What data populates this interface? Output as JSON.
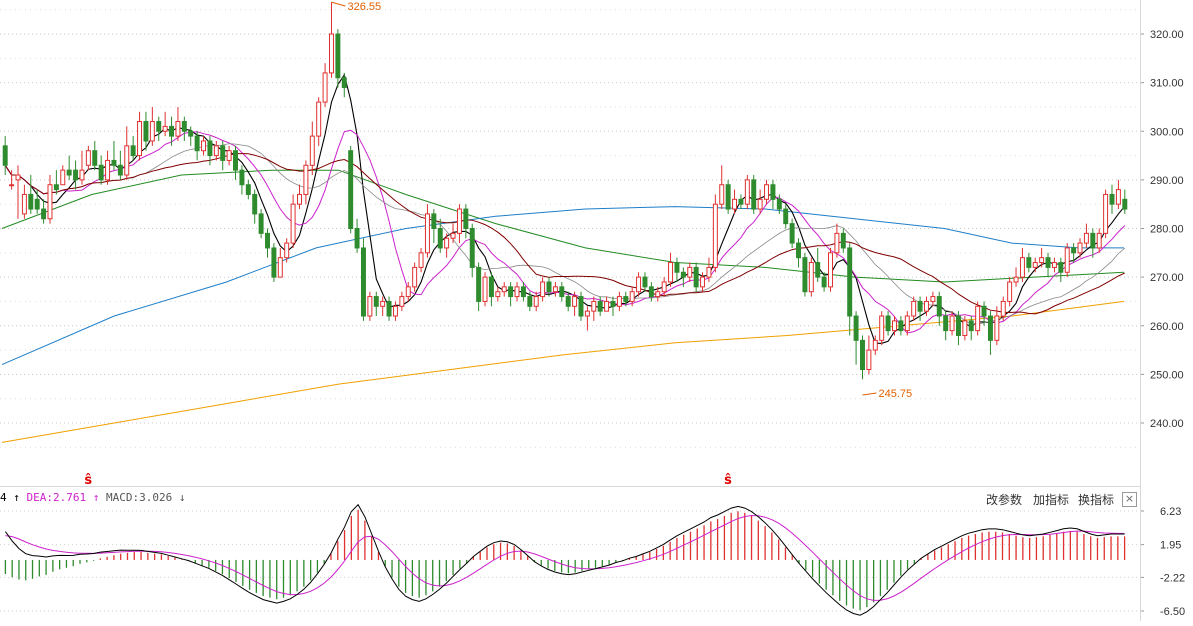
{
  "colors": {
    "up": "#e03030",
    "down": "#2e8b2e",
    "ma5": "#000000",
    "ma10": "#cc22cc",
    "ma20": "#888888",
    "ma30": "#800000",
    "ma60": "#228b22",
    "ma120": "#1e7ec8",
    "ma250": "#f0a000",
    "dif": "#000000",
    "dea": "#cc22cc",
    "annotation": "#e06000",
    "signal": "#e00000"
  },
  "legend": {
    "dif_tail": "4",
    "dif_arrow": "↑",
    "dea_label": "DEA:2.761",
    "dea_arrow": "↑",
    "macd_label": "MACD:3.026",
    "macd_arrow": "↓"
  },
  "toolbar": {
    "change_params": "改参数",
    "add_indicator": "加指标",
    "switch_indicator": "换指标",
    "close": "×"
  },
  "annotations": {
    "high_label": "326.55",
    "low_label": "245.75"
  },
  "signal_glyph": "ŝ",
  "chart_data": [
    {
      "type": "candlestick",
      "y_ticks": [
        "320.00",
        "310.00",
        "300.00",
        "290.00",
        "280.00",
        "270.00",
        "260.00",
        "250.00",
        "240.00"
      ],
      "ylim": [
        231,
        328
      ],
      "high": 326.55,
      "low": 245.75,
      "signal_markers": [
        13,
        113
      ],
      "candles": [
        [
          297,
          293,
          299,
          291
        ],
        [
          289,
          289,
          292,
          288
        ],
        [
          290,
          291,
          293,
          282
        ],
        [
          283,
          287,
          289,
          282
        ],
        [
          287,
          284,
          291,
          283
        ],
        [
          286,
          284,
          288,
          283
        ],
        [
          284,
          282,
          286,
          281
        ],
        [
          282,
          289,
          291,
          281
        ],
        [
          289,
          288,
          292,
          287
        ],
        [
          289,
          292,
          293,
          289
        ],
        [
          292,
          291,
          295,
          290
        ],
        [
          292,
          290,
          294,
          288
        ],
        [
          290,
          292,
          296,
          289
        ],
        [
          293,
          296,
          297,
          292
        ],
        [
          296,
          293,
          298,
          292
        ],
        [
          293,
          290,
          295,
          289
        ],
        [
          290,
          294,
          296,
          289
        ],
        [
          294,
          293,
          298,
          292
        ],
        [
          293,
          291,
          296,
          290
        ],
        [
          291,
          297,
          301,
          290
        ],
        [
          297,
          295,
          299,
          294
        ],
        [
          295,
          302,
          304,
          294
        ],
        [
          302,
          298,
          304,
          296
        ],
        [
          298,
          302,
          305,
          297
        ],
        [
          302,
          300,
          303,
          298
        ],
        [
          300,
          301,
          304,
          299
        ],
        [
          301,
          299,
          303,
          297
        ],
        [
          299,
          302,
          305,
          298
        ],
        [
          302,
          300,
          303,
          298
        ],
        [
          300,
          299,
          301,
          297
        ],
        [
          299,
          296,
          300,
          294
        ],
        [
          296,
          298,
          299,
          295
        ],
        [
          298,
          295,
          299,
          293
        ],
        [
          295,
          297,
          298,
          294
        ],
        [
          297,
          294,
          298,
          292
        ],
        [
          294,
          296,
          297,
          293
        ],
        [
          296,
          292,
          297,
          290
        ],
        [
          292,
          289,
          293,
          287
        ],
        [
          289,
          287,
          290,
          286
        ],
        [
          287,
          283,
          288,
          281
        ],
        [
          283,
          279,
          284,
          278
        ],
        [
          279,
          276,
          280,
          274
        ],
        [
          276,
          270,
          277,
          269
        ],
        [
          270,
          274,
          276,
          270
        ],
        [
          274,
          277,
          278,
          273
        ],
        [
          277,
          285,
          287,
          276
        ],
        [
          285,
          287,
          289,
          284
        ],
        [
          287,
          293,
          294,
          285
        ],
        [
          293,
          299,
          302,
          291
        ],
        [
          299,
          306,
          307,
          297
        ],
        [
          306,
          312,
          314,
          305
        ],
        [
          312,
          320,
          326.55,
          311
        ],
        [
          320,
          311,
          321,
          309
        ],
        [
          311,
          309,
          312,
          307
        ],
        [
          296,
          280,
          297,
          279
        ],
        [
          280,
          276,
          282,
          275
        ],
        [
          276,
          262,
          278,
          261
        ],
        [
          262,
          266,
          267,
          261
        ],
        [
          266,
          264,
          267,
          262
        ],
        [
          264,
          265,
          266,
          262
        ],
        [
          265,
          262,
          266,
          261
        ],
        [
          262,
          264,
          265,
          261
        ],
        [
          264,
          266,
          267,
          263
        ],
        [
          266,
          268,
          269,
          265
        ],
        [
          268,
          272,
          273,
          267
        ],
        [
          272,
          275,
          276,
          271
        ],
        [
          275,
          283,
          285,
          274
        ],
        [
          283,
          280,
          284,
          277
        ],
        [
          280,
          276,
          282,
          275
        ],
        [
          276,
          278,
          279,
          274
        ],
        [
          278,
          279,
          281,
          277
        ],
        [
          279,
          284,
          285,
          277
        ],
        [
          284,
          280,
          285,
          278
        ],
        [
          280,
          272,
          281,
          270
        ],
        [
          272,
          265,
          273,
          263
        ],
        [
          265,
          270,
          271,
          264
        ],
        [
          270,
          266,
          271,
          264
        ],
        [
          266,
          267,
          268,
          265
        ],
        [
          267,
          268,
          269,
          266
        ],
        [
          268,
          266,
          269,
          264
        ],
        [
          266,
          268,
          269,
          265
        ],
        [
          268,
          266,
          269,
          265
        ],
        [
          266,
          264,
          267,
          263
        ],
        [
          264,
          266,
          267,
          263
        ],
        [
          266,
          269,
          270,
          265
        ],
        [
          269,
          267,
          270,
          266
        ],
        [
          267,
          268,
          269,
          266
        ],
        [
          268,
          266,
          269,
          265
        ],
        [
          266,
          264,
          267,
          263
        ],
        [
          264,
          266,
          267,
          262
        ],
        [
          266,
          262,
          267,
          261
        ],
        [
          262,
          263,
          264,
          259
        ],
        [
          263,
          265,
          266,
          261
        ],
        [
          265,
          263,
          266,
          262
        ],
        [
          263,
          265,
          266,
          263
        ],
        [
          265,
          264,
          266,
          262
        ],
        [
          264,
          266,
          267,
          263
        ],
        [
          266,
          265,
          267,
          264
        ],
        [
          265,
          267,
          268,
          264
        ],
        [
          267,
          270,
          271,
          266
        ],
        [
          270,
          268,
          271,
          267
        ],
        [
          268,
          266,
          269,
          265
        ],
        [
          266,
          267,
          268,
          265
        ],
        [
          267,
          269,
          270,
          266
        ],
        [
          269,
          273,
          275,
          268
        ],
        [
          273,
          271,
          274,
          269
        ],
        [
          271,
          270,
          272,
          268
        ],
        [
          270,
          272,
          273,
          269
        ],
        [
          272,
          268,
          273,
          267
        ],
        [
          268,
          270,
          271,
          267
        ],
        [
          270,
          272,
          274,
          269
        ],
        [
          272,
          285,
          287,
          271
        ],
        [
          285,
          289,
          293,
          284
        ],
        [
          289,
          284,
          290,
          283
        ],
        [
          284,
          286,
          288,
          283
        ],
        [
          286,
          285,
          287,
          284
        ],
        [
          285,
          290,
          291,
          284
        ],
        [
          290,
          284,
          291,
          283
        ],
        [
          284,
          286,
          288,
          283
        ],
        [
          286,
          289,
          290,
          285
        ],
        [
          289,
          286,
          290,
          284
        ],
        [
          286,
          284,
          287,
          283
        ],
        [
          284,
          281,
          285,
          280
        ],
        [
          281,
          277,
          282,
          276
        ],
        [
          277,
          274,
          278,
          272
        ],
        [
          274,
          267,
          275,
          266
        ],
        [
          267,
          273,
          274,
          266
        ],
        [
          273,
          270,
          276,
          269
        ],
        [
          270,
          268,
          271,
          267
        ],
        [
          268,
          275,
          276,
          267
        ],
        [
          275,
          279,
          281,
          274
        ],
        [
          279,
          276,
          280,
          275
        ],
        [
          276,
          262,
          277,
          258
        ],
        [
          262,
          257,
          263,
          252
        ],
        [
          257,
          251,
          258,
          249
        ],
        [
          251,
          255,
          258,
          250
        ],
        [
          255,
          257,
          258,
          254
        ],
        [
          257,
          262,
          263,
          256
        ],
        [
          262,
          259,
          263,
          258
        ],
        [
          259,
          261,
          262,
          258
        ],
        [
          261,
          259,
          262,
          258
        ],
        [
          259,
          262,
          263,
          258
        ],
        [
          262,
          265,
          266,
          261
        ],
        [
          265,
          263,
          266,
          261
        ],
        [
          263,
          265,
          266,
          262
        ],
        [
          265,
          266,
          267,
          264
        ],
        [
          266,
          262,
          267,
          260
        ],
        [
          262,
          259,
          263,
          257
        ],
        [
          259,
          262,
          263,
          258
        ],
        [
          262,
          258,
          263,
          256
        ],
        [
          258,
          261,
          262,
          257
        ],
        [
          261,
          259,
          262,
          257
        ],
        [
          259,
          264,
          265,
          258
        ],
        [
          264,
          262,
          265,
          260
        ],
        [
          262,
          257,
          263,
          254
        ],
        [
          257,
          262,
          264,
          256
        ],
        [
          262,
          265,
          266,
          261
        ],
        [
          265,
          269,
          270,
          264
        ],
        [
          269,
          270,
          272,
          268
        ],
        [
          270,
          274,
          276,
          269
        ],
        [
          274,
          272,
          275,
          271
        ],
        [
          272,
          273,
          274,
          271
        ],
        [
          273,
          274,
          276,
          272
        ],
        [
          274,
          272,
          275,
          270
        ],
        [
          272,
          273,
          274,
          271
        ],
        [
          273,
          271,
          274,
          269
        ],
        [
          271,
          276,
          277,
          270
        ],
        [
          276,
          275,
          277,
          273
        ],
        [
          275,
          277,
          278,
          274
        ],
        [
          277,
          279,
          281,
          276
        ],
        [
          279,
          276,
          280,
          274
        ],
        [
          276,
          279,
          280,
          275
        ],
        [
          279,
          287,
          288,
          278
        ],
        [
          287,
          285,
          289,
          283
        ],
        [
          285,
          288,
          290,
          284
        ],
        [
          286,
          284,
          288,
          283
        ]
      ],
      "series": [
        {
          "name": "MA5",
          "color": "#000000",
          "values": []
        },
        {
          "name": "MA10",
          "color": "#cc22cc",
          "values": []
        },
        {
          "name": "MA20",
          "color": "#888888",
          "values": []
        },
        {
          "name": "MA30",
          "color": "#800000",
          "values": []
        },
        {
          "name": "MA60",
          "color": "#228b22",
          "values": []
        },
        {
          "name": "MA120",
          "color": "#1e7ec8",
          "values": []
        },
        {
          "name": "MA250",
          "color": "#f0a000",
          "values": []
        }
      ]
    },
    {
      "type": "macd",
      "y_ticks": [
        "6.23",
        "1.95",
        "-2.22",
        "-6.50"
      ],
      "ylim": [
        -7.4,
        7.4
      ],
      "dif": 0,
      "dea": 2.761,
      "macd": 3.026,
      "hist": [
        -1.8,
        -2.2,
        -2.5,
        -2.6,
        -2.4,
        -2.1,
        -1.9,
        -1.5,
        -1.2,
        -1.0,
        -0.8,
        -0.5,
        -0.3,
        -0.1,
        0.2,
        0.4,
        0.6,
        0.8,
        0.9,
        1.0,
        1.0,
        0.9,
        0.8,
        0.7,
        0.5,
        0.3,
        0.1,
        -0.1,
        -0.4,
        -0.7,
        -1.0,
        -1.4,
        -1.8,
        -2.3,
        -2.8,
        -3.3,
        -3.8,
        -4.2,
        -4.6,
        -4.8,
        -5.0,
        -4.8,
        -4.5,
        -4.0,
        -3.4,
        -2.6,
        -1.6,
        -0.5,
        0.8,
        2.4,
        3.8,
        5.6,
        6.4,
        5.0,
        3.0,
        1.0,
        -0.8,
        -2.2,
        -3.4,
        -4.2,
        -4.6,
        -4.8,
        -4.5,
        -4.0,
        -3.4,
        -2.7,
        -1.9,
        -1.1,
        -0.4,
        0.4,
        1.0,
        1.6,
        2.0,
        2.2,
        2.1,
        1.8,
        1.2,
        0.5,
        -0.2,
        -0.7,
        -1.1,
        -1.4,
        -1.6,
        -1.7,
        -1.6,
        -1.4,
        -1.2,
        -1.0,
        -0.8,
        -0.6,
        -0.3,
        -0.1,
        0.2,
        0.4,
        0.7,
        1.0,
        1.4,
        1.8,
        2.3,
        2.8,
        3.2,
        3.6,
        4.0,
        4.4,
        4.9,
        5.2,
        5.6,
        6.0,
        6.2,
        6.0,
        5.6,
        5.0,
        4.3,
        3.5,
        2.6,
        1.6,
        0.6,
        -0.4,
        -1.3,
        -2.2,
        -3.0,
        -3.8,
        -4.5,
        -5.2,
        -5.8,
        -6.2,
        -6.4,
        -6.0,
        -5.4,
        -4.6,
        -3.8,
        -2.9,
        -2.0,
        -1.2,
        -0.5,
        0.2,
        0.7,
        1.2,
        1.6,
        2.0,
        2.4,
        2.8,
        3.1,
        3.3,
        3.5,
        3.6,
        3.6,
        3.5,
        3.3,
        3.1,
        2.9,
        2.8,
        2.9,
        3.0,
        3.2,
        3.4,
        3.6,
        3.7,
        3.6,
        3.3,
        3.0,
        2.8,
        2.9,
        3.0,
        3.0,
        3.0
      ]
    }
  ]
}
